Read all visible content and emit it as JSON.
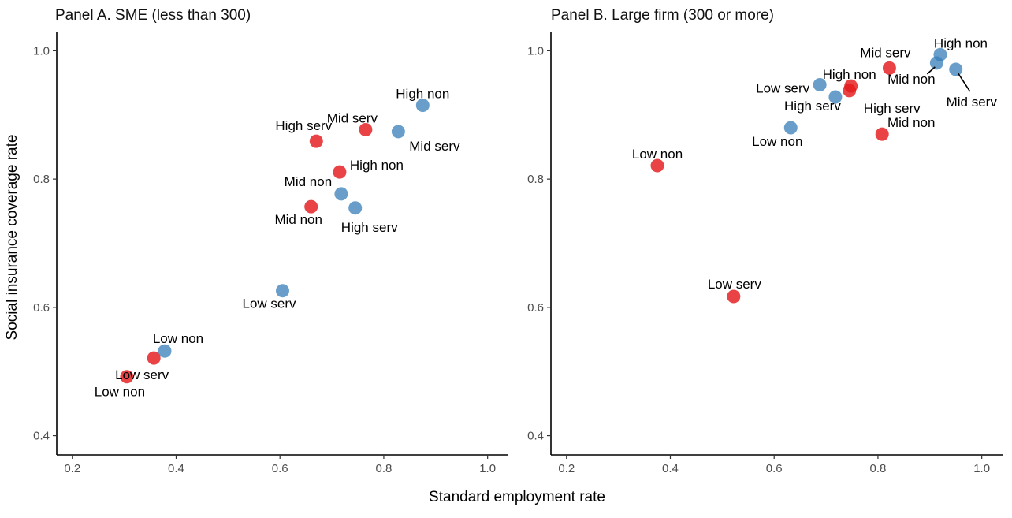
{
  "colors": {
    "series_red": "#E41A1C",
    "series_blue": "#377EB8"
  },
  "chart_data": {
    "type": "scatter",
    "xlabel": "Standard employment rate",
    "ylabel": "Social insurance coverage rate",
    "xlim": [
      0.17,
      1.04
    ],
    "ylim": [
      0.37,
      1.03
    ],
    "xticks": [
      0.2,
      0.4,
      0.6,
      0.8,
      1.0
    ],
    "yticks": [
      0.4,
      0.6,
      0.8,
      1.0
    ],
    "xtick_labels": [
      "0.2",
      "0.4",
      "0.6",
      "0.8",
      "1.0"
    ],
    "ytick_labels": [
      "0.4",
      "0.6",
      "0.8",
      "1.0"
    ],
    "grid": false,
    "legend": "none",
    "panels": [
      {
        "title": "Panel A. SME (less than 300)",
        "points": [
          {
            "label": "High non",
            "x": 0.875,
            "y": 0.915,
            "color": "blue"
          },
          {
            "label": "Mid serv",
            "x": 0.828,
            "y": 0.874,
            "color": "blue"
          },
          {
            "label": "Mid serv",
            "x": 0.765,
            "y": 0.877,
            "color": "red"
          },
          {
            "label": "High serv",
            "x": 0.67,
            "y": 0.859,
            "color": "red"
          },
          {
            "label": "High non",
            "x": 0.715,
            "y": 0.811,
            "color": "red"
          },
          {
            "label": "Mid non",
            "x": 0.718,
            "y": 0.777,
            "color": "blue"
          },
          {
            "label": "Mid non",
            "x": 0.66,
            "y": 0.757,
            "color": "red"
          },
          {
            "label": "High serv",
            "x": 0.745,
            "y": 0.755,
            "color": "blue"
          },
          {
            "label": "Low serv",
            "x": 0.605,
            "y": 0.626,
            "color": "blue"
          },
          {
            "label": "Low non",
            "x": 0.378,
            "y": 0.532,
            "color": "blue"
          },
          {
            "label": "Low serv",
            "x": 0.357,
            "y": 0.521,
            "color": "red"
          },
          {
            "label": "Low non",
            "x": 0.305,
            "y": 0.492,
            "color": "red"
          }
        ]
      },
      {
        "title": "Panel B. Large firm (300 or more)",
        "points": [
          {
            "label": "High non",
            "x": 0.92,
            "y": 0.994,
            "color": "blue"
          },
          {
            "label": "Mid non",
            "x": 0.913,
            "y": 0.981,
            "color": "blue"
          },
          {
            "label": "Mid serv",
            "x": 0.95,
            "y": 0.971,
            "color": "blue"
          },
          {
            "label": "Mid serv",
            "x": 0.822,
            "y": 0.973,
            "color": "red"
          },
          {
            "label": "High non",
            "x": 0.748,
            "y": 0.945,
            "color": "red"
          },
          {
            "label": "High serv",
            "x": 0.745,
            "y": 0.938,
            "color": "red"
          },
          {
            "label": "Low serv",
            "x": 0.688,
            "y": 0.947,
            "color": "blue"
          },
          {
            "label": "High serv",
            "x": 0.718,
            "y": 0.928,
            "color": "blue"
          },
          {
            "label": "Low non",
            "x": 0.632,
            "y": 0.88,
            "color": "blue"
          },
          {
            "label": "Mid non",
            "x": 0.808,
            "y": 0.87,
            "color": "red"
          },
          {
            "label": "Low non",
            "x": 0.375,
            "y": 0.821,
            "color": "red"
          },
          {
            "label": "Low serv",
            "x": 0.522,
            "y": 0.617,
            "color": "red"
          }
        ]
      }
    ]
  }
}
